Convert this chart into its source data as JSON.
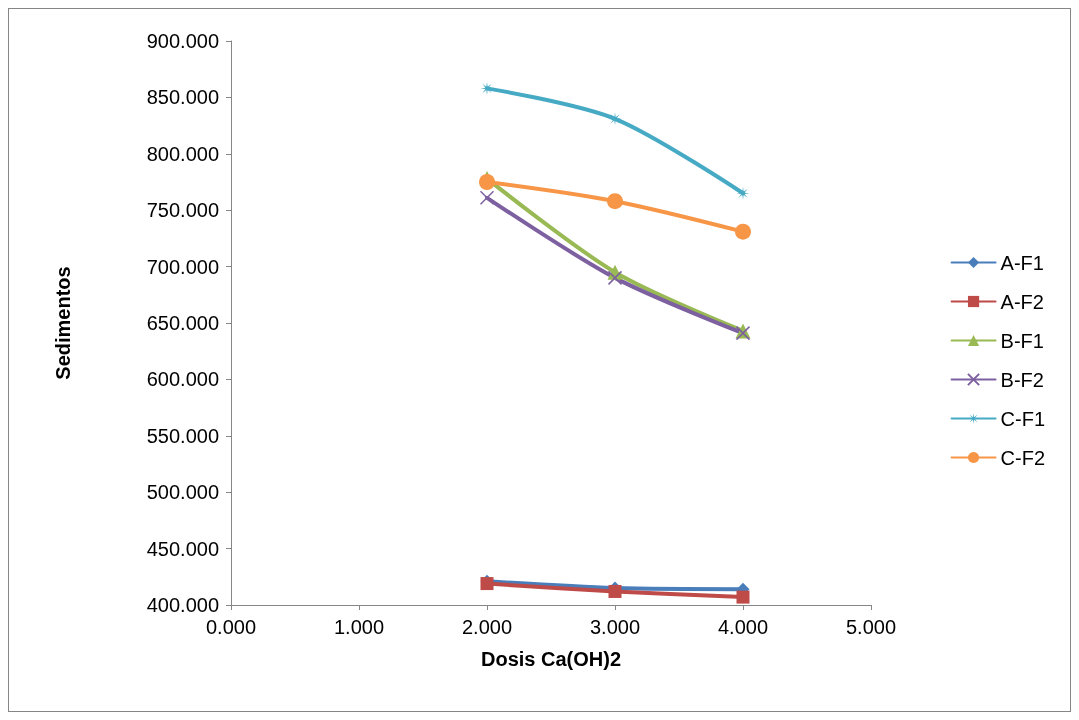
{
  "chart_data": {
    "type": "line",
    "xlabel": "Dosis Ca(OH)2",
    "ylabel": "Sedimentos",
    "x": [
      2,
      3,
      4
    ],
    "series": [
      {
        "name": "A-F1",
        "color": "#4a7ebb",
        "marker": "diamond",
        "values": [
          421,
          415,
          414
        ]
      },
      {
        "name": "A-F2",
        "color": "#be4b48",
        "marker": "square",
        "values": [
          419,
          412,
          407
        ]
      },
      {
        "name": "B-F1",
        "color": "#98b954",
        "marker": "triangle",
        "values": [
          778,
          695,
          643
        ]
      },
      {
        "name": "B-F2",
        "color": "#7d60a0",
        "marker": "cross",
        "values": [
          761,
          690,
          641
        ]
      },
      {
        "name": "C-F1",
        "color": "#46aac5",
        "marker": "star",
        "values": [
          858,
          831,
          765
        ]
      },
      {
        "name": "C-F2",
        "color": "#f79646",
        "marker": "circle",
        "values": [
          775,
          758,
          731
        ]
      }
    ],
    "xlim": [
      0,
      5
    ],
    "xticks": [
      {
        "value": 0,
        "label": "0.000"
      },
      {
        "value": 1,
        "label": "1.000"
      },
      {
        "value": 2,
        "label": "2.000"
      },
      {
        "value": 3,
        "label": "3.000"
      },
      {
        "value": 4,
        "label": "4.000"
      },
      {
        "value": 5,
        "label": "5.000"
      }
    ],
    "ylim": [
      400,
      900
    ],
    "yticks": [
      {
        "value": 400,
        "label": "400.000"
      },
      {
        "value": 450,
        "label": "450.000"
      },
      {
        "value": 500,
        "label": "500.000"
      },
      {
        "value": 550,
        "label": "550.000"
      },
      {
        "value": 600,
        "label": "600.000"
      },
      {
        "value": 650,
        "label": "650.000"
      },
      {
        "value": 700,
        "label": "700.000"
      },
      {
        "value": 750,
        "label": "750.000"
      },
      {
        "value": 800,
        "label": "800.000"
      },
      {
        "value": 850,
        "label": "850.000"
      },
      {
        "value": 900,
        "label": "900.000"
      }
    ],
    "grid": false,
    "legend": "right",
    "line_style": "solid"
  }
}
